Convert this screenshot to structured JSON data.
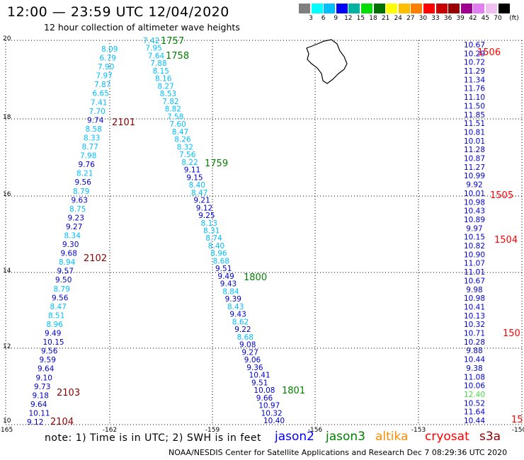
{
  "title": "12:00 — 23:59 UTC 12/04/2020",
  "subtitle": "12 hour collection of altimeter wave heights",
  "legend": {
    "colors": [
      "#7f7f7f",
      "#00ffff",
      "#00bfff",
      "#0000ff",
      "#00b3a0",
      "#00dd00",
      "#007000",
      "#ffff00",
      "#ffbf00",
      "#ff7f00",
      "#ff0000",
      "#c80000",
      "#9a0000",
      "#a00090",
      "#e080f0",
      "#f0c0f0",
      "#000000"
    ],
    "labels": [
      "3",
      "6",
      "9",
      "12",
      "15",
      "18",
      "21",
      "24",
      "27",
      "30",
      "33",
      "36",
      "39",
      "42",
      "45",
      "70"
    ],
    "unit": "(ft)"
  },
  "axes": {
    "lat_labels": [
      "20",
      "18",
      "16",
      "14",
      "12",
      "10"
    ],
    "lon_labels": [
      "-165",
      "-162",
      "-159",
      "-156",
      "-153",
      "-150"
    ]
  },
  "tracks": [
    {
      "x0": 143,
      "y0": 69,
      "x1": 38,
      "y1": 596,
      "color": "#00bfff",
      "values": [
        "8.09",
        "6.79",
        "7.90",
        "7.97",
        "7.87",
        "6.65",
        "7.41",
        "7.70",
        "9.74",
        "8.58",
        "8.33",
        "8.77",
        "7.98",
        "9.76",
        "8.21",
        "9.56",
        "8.79",
        "9.63",
        "8.75",
        "9.23",
        "9.27",
        "8.34",
        "9.30",
        "9.68",
        "8.94",
        "9.57",
        "9.50",
        "8.79",
        "9.56",
        "8.47",
        "8.51",
        "8.96",
        "9.49",
        "10.15",
        "9.56",
        "9.59",
        "9.64",
        "9.10",
        "9.73",
        "9.18",
        "9.64",
        "10.11",
        "9.12"
      ],
      "cols": [
        "c",
        "c",
        "c",
        "c",
        "c",
        "c",
        "c",
        "c",
        "b",
        "c",
        "c",
        "c",
        "c",
        "b",
        "c",
        "b",
        "c",
        "b",
        "c",
        "b",
        "b",
        "c",
        "b",
        "b",
        "c",
        "b",
        "b",
        "c",
        "b",
        "c",
        "c",
        "c",
        "b",
        "b",
        "b",
        "b",
        "b",
        "b",
        "b",
        "b",
        "b",
        "b",
        "b"
      ]
    },
    {
      "x0": 202,
      "y0": 57,
      "x1": 372,
      "y1": 594,
      "color": "#00bfff",
      "values": [
        "7.42",
        "7.95",
        "7.64",
        "7.88",
        "8.15",
        "8.16",
        "8.27",
        "8.53",
        "7.82",
        "8.82",
        "7.58",
        "7.60",
        "8.47",
        "8.26",
        "8.32",
        "7.56",
        "8.22",
        "9.11",
        "9.15",
        "8.40",
        "8.47",
        "9.21",
        "9.12",
        "9.25",
        "8.13",
        "8.31",
        "8.74",
        "8.40",
        "8.96",
        "8.68",
        "9.51",
        "9.49",
        "9.43",
        "8.84",
        "9.39",
        "8.43",
        "9.43",
        "8.62",
        "9.22",
        "8.68",
        "9.08",
        "9.27",
        "9.06",
        "9.36",
        "10.41",
        "9.51",
        "10.08",
        "9.66",
        "10.97",
        "10.32",
        "10.40"
      ],
      "cols": [
        "c",
        "c",
        "c",
        "c",
        "c",
        "c",
        "c",
        "c",
        "c",
        "c",
        "c",
        "c",
        "c",
        "c",
        "c",
        "c",
        "c",
        "b",
        "b",
        "c",
        "c",
        "b",
        "b",
        "b",
        "c",
        "c",
        "c",
        "c",
        "c",
        "c",
        "b",
        "b",
        "b",
        "c",
        "b",
        "c",
        "b",
        "c",
        "b",
        "c",
        "b",
        "b",
        "b",
        "b",
        "b",
        "b",
        "b",
        "b",
        "b",
        "b",
        "b"
      ]
    },
    {
      "x0": 670,
      "y0": 63,
      "x1": 670,
      "y1": 594,
      "color": "#0000ff",
      "values": [
        "10.67",
        "10.29",
        "10.72",
        "11.29",
        "11.34",
        "11.76",
        "11.10",
        "11.50",
        "11.85",
        "11.51",
        "10.81",
        "10.01",
        "11.28",
        "10.87",
        "11.27",
        "10.99",
        "9.92",
        "10.01",
        "10.98",
        "10.43",
        "10.89",
        "9.97",
        "10.15",
        "10.82",
        "10.90",
        "11.07",
        "11.01",
        "10.67",
        "9.98",
        "10.98",
        "10.41",
        "10.13",
        "10.32",
        "10.71",
        "10.28",
        "9.88",
        "10.44",
        "9.38",
        "11.08",
        "10.06",
        "12.40",
        "10.52",
        "11.64",
        "10.44"
      ],
      "cols": [
        "b",
        "b",
        "b",
        "b",
        "b",
        "b",
        "b",
        "b",
        "b",
        "b",
        "b",
        "b",
        "b",
        "b",
        "b",
        "b",
        "b",
        "b",
        "b",
        "b",
        "b",
        "b",
        "b",
        "b",
        "b",
        "b",
        "b",
        "b",
        "b",
        "b",
        "b",
        "b",
        "b",
        "b",
        "b",
        "b",
        "b",
        "b",
        "b",
        "b",
        "g",
        "b",
        "b",
        "b"
      ]
    }
  ],
  "time_labels": [
    {
      "text": "1757",
      "color": "#008000"
    },
    {
      "text": "1758",
      "color": "#008000"
    },
    {
      "text": "1759",
      "color": "#008000"
    },
    {
      "text": "1800",
      "color": "#008000"
    },
    {
      "text": "1801",
      "color": "#008000"
    },
    {
      "text": "2101",
      "color": "#8b0000"
    },
    {
      "text": "2102",
      "color": "#8b0000"
    },
    {
      "text": "2103",
      "color": "#8b0000"
    },
    {
      "text": "2104",
      "color": "#8b0000"
    },
    {
      "text": "1506",
      "color": "#ff0000"
    },
    {
      "text": "1505",
      "color": "#ff0000"
    },
    {
      "text": "1504",
      "color": "#ff0000"
    },
    {
      "text": "150",
      "color": "#ff0000"
    },
    {
      "text": "15",
      "color": "#ff0000"
    }
  ],
  "note": "note:  1) Time is in UTC;  2) SWH is in feet",
  "satellites": [
    {
      "name": "jason2",
      "color": "#0000ff"
    },
    {
      "name": "jason3",
      "color": "#008000"
    },
    {
      "name": "altika",
      "color": "#ff8c00"
    },
    {
      "name": "cryosat",
      "color": "#ff0000"
    },
    {
      "name": "s3a",
      "color": "#8b0000"
    }
  ],
  "credit": "NOAA/NESDIS Center for Satellite Applications and Research    Dec  7 08:29:36 UTC 2020"
}
